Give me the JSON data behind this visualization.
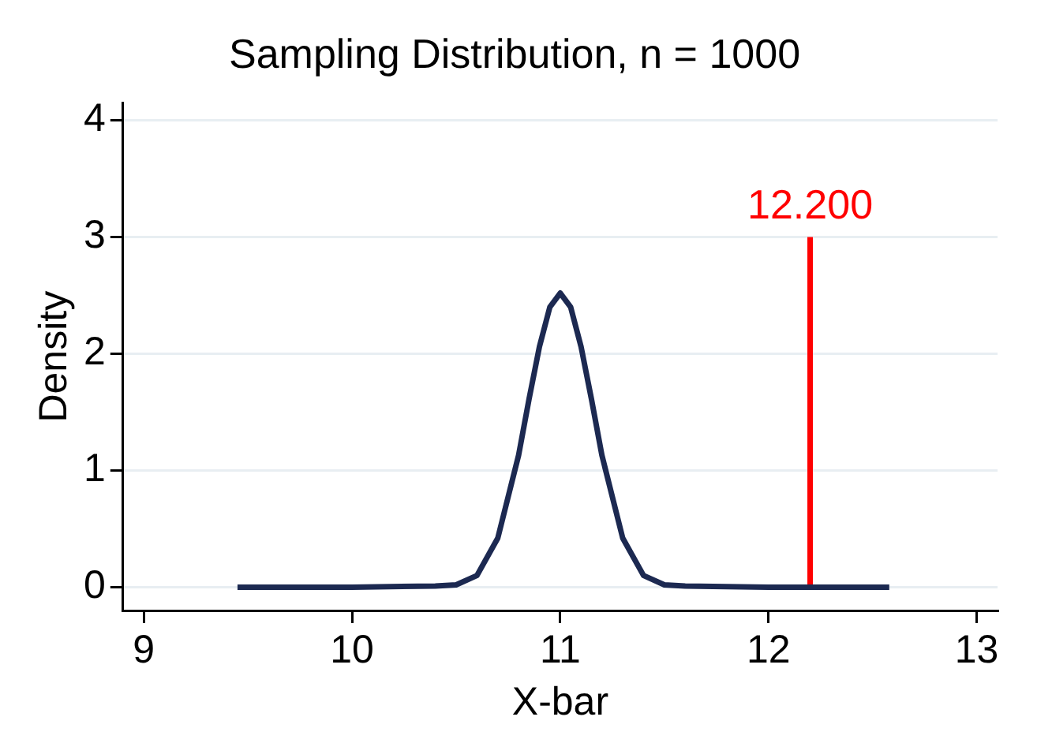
{
  "chart_data": {
    "type": "line",
    "title": "Sampling Distribution, n = 1000",
    "xlabel": "X-bar",
    "ylabel": "Density",
    "series": [
      {
        "color": "#1c2951",
        "x": [
          9.45,
          10,
          10.4,
          10.5,
          10.6,
          10.7,
          10.8,
          10.85,
          10.9,
          10.95,
          11,
          11.05,
          11.1,
          11.15,
          11.2,
          11.3,
          11.4,
          11.5,
          11.6,
          12,
          12.58
        ],
        "values": [
          0,
          0,
          0.01,
          0.02,
          0.1,
          0.42,
          1.13,
          1.61,
          2.06,
          2.4,
          2.52,
          2.4,
          2.06,
          1.61,
          1.13,
          0.42,
          0.1,
          0.02,
          0.01,
          0,
          0
        ]
      },
      {
        "color": "#ff0000",
        "x": [
          12.2,
          12.2
        ],
        "values": [
          0,
          3
        ]
      }
    ],
    "annotations": [
      {
        "text": "12.200",
        "x": 12.2,
        "y": 3
      }
    ],
    "xlim": [
      8.9,
      13.1
    ],
    "xticks": [
      9,
      10,
      11,
      12,
      13
    ],
    "ylim": [
      -0.2,
      4.15
    ],
    "yticks": [
      0,
      1,
      2,
      3,
      4
    ],
    "grid": "y",
    "legend": false,
    "marker": "none"
  }
}
